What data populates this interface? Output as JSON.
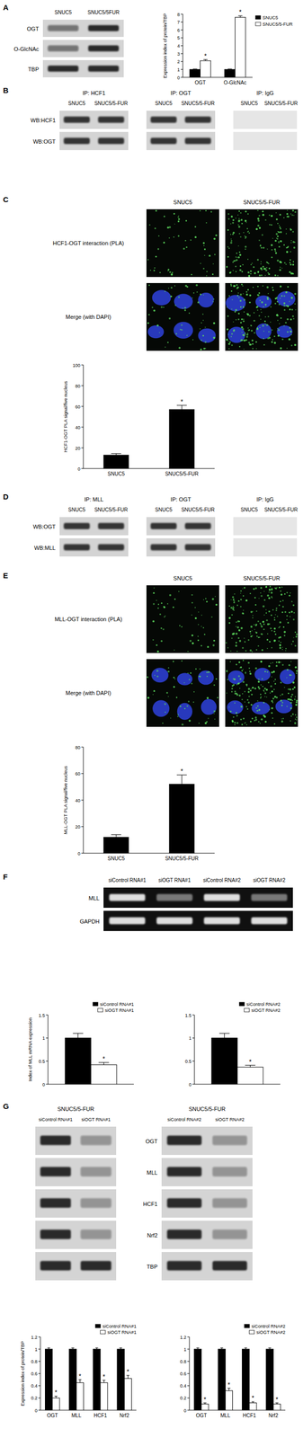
{
  "panels": [
    {
      "letter": "A",
      "blots": [
        {
          "columns": [
            "SNUC5",
            "SNUC5/5FUR"
          ],
          "rows": [
            "OGT",
            "O-GlcNAc",
            "TBP"
          ]
        }
      ]
    },
    {
      "letter": "B",
      "blots": [
        {
          "title": "IP: HCF1",
          "columns": [
            "SNUC5",
            "SNUC5/5-FUR"
          ],
          "rows": [
            "WB:HCF1",
            "WB:OGT"
          ]
        },
        {
          "title": "IP: OGT",
          "columns": [
            "SNUC5",
            "SNUC5/5-FUR"
          ]
        },
        {
          "title": "IP: IgG",
          "columns": [
            "SNUC5",
            "SNUC5/5-FUR"
          ]
        }
      ]
    },
    {
      "letter": "C",
      "images": {
        "columns": [
          "SNUC5",
          "SNUC5/5-FUR"
        ],
        "rows": [
          "HCF1-OGT interaction (PLA)",
          "Merge (with DAPI)"
        ]
      }
    },
    {
      "letter": "D",
      "blots": [
        {
          "title": "IP: MLL",
          "columns": [
            "SNUC5",
            "SNUC5/5-FUR"
          ],
          "rows": [
            "WB:OGT",
            "WB:MLL"
          ]
        },
        {
          "title": "IP: OGT",
          "columns": [
            "SNUC5",
            "SNUC5/5-FUR"
          ]
        },
        {
          "title": "IP: IgG",
          "columns": [
            "SNUC5",
            "SNUC5/5-FUR"
          ]
        }
      ]
    },
    {
      "letter": "E",
      "images": {
        "columns": [
          "SNUC5",
          "SNUC5/5-FUR"
        ],
        "rows": [
          "MLL-OGT interaction (PLA)",
          "Merge (with DAPI)"
        ]
      }
    },
    {
      "letter": "F",
      "blots": [
        {
          "columns": [
            "siControl RNA#1",
            "siOGT RNA#1",
            "siControl RNA#2",
            "siOGT RNA#2"
          ],
          "rows": [
            "MLL",
            "GAPDH"
          ]
        }
      ]
    },
    {
      "letter": "G",
      "blots": [
        {
          "title": "SNUC5/5-FUR",
          "columns": [
            "siControl RNA#1",
            "siOGT RNA#1"
          ]
        },
        {
          "title": "SNUC5/5-FUR",
          "columns": [
            "siControl RNA#2",
            "siOGT RNA#2"
          ],
          "rows": [
            "OGT",
            "MLL",
            "HCF1",
            "Nrf2",
            "TBP"
          ]
        }
      ]
    }
  ],
  "chart_data": [
    {
      "type": "bar",
      "y_label": "Expression index of protein/TBP",
      "categories": [
        "OGT",
        "O-GlcNAc"
      ],
      "series": [
        {
          "name": "SNUC5",
          "color": "#000000",
          "values": [
            1,
            1
          ],
          "errors": [
            0.05,
            0.05
          ]
        },
        {
          "name": "SNUC5/5-FUR",
          "color": "#ffffff",
          "values": [
            2.1,
            7.6
          ],
          "errors": [
            0.15,
            0.2
          ],
          "annotations": [
            "*",
            "*"
          ]
        }
      ],
      "ylim": [
        0,
        8
      ],
      "yticks": [
        0,
        1,
        2,
        3,
        4,
        5,
        6,
        7,
        8
      ],
      "legend": "right"
    },
    {
      "type": "bar",
      "y_label": "HCF1-OGT PLA signal/five nucleus",
      "categories": [
        "SNUC5",
        "SNUC5/5-FUR"
      ],
      "series": [
        {
          "color": "#000000",
          "values": [
            13,
            57
          ],
          "errors": [
            1.5,
            4
          ],
          "annotations": [
            null,
            "*"
          ]
        }
      ],
      "ylim": [
        0,
        100
      ],
      "yticks": [
        0,
        20,
        40,
        60,
        80,
        100
      ]
    },
    {
      "type": "bar",
      "y_label": "MLL-OGT PLA signal/five nucleus",
      "categories": [
        "SNUC5",
        "SNUC5/5-FUR"
      ],
      "series": [
        {
          "color": "#000000",
          "values": [
            12,
            52
          ],
          "errors": [
            2,
            7
          ],
          "annotations": [
            null,
            "*"
          ]
        }
      ],
      "ylim": [
        0,
        80
      ],
      "yticks": [
        0,
        20,
        40,
        60,
        80
      ]
    },
    {
      "type": "bar",
      "y_label": "Index of MLL mRNA expression",
      "categories": [
        null
      ],
      "series": [
        {
          "name": "siControl RNA#1",
          "color": "#000000",
          "values": [
            1
          ],
          "errors": [
            0.1
          ]
        },
        {
          "name": "siOGT RNA#1",
          "color": "#ffffff",
          "values": [
            0.42
          ],
          "errors": [
            0.05
          ],
          "annotations": [
            "*"
          ]
        }
      ],
      "ylim": [
        0,
        1.5
      ],
      "yticks": [
        0,
        0.5,
        1,
        1.5
      ],
      "legend": "top-right"
    },
    {
      "type": "bar",
      "categories": [
        null
      ],
      "series": [
        {
          "name": "siControl RNA#2",
          "color": "#000000",
          "values": [
            1
          ],
          "errors": [
            0.1
          ]
        },
        {
          "name": "siOGT RNA#2",
          "color": "#ffffff",
          "values": [
            0.37
          ],
          "errors": [
            0.04
          ],
          "annotations": [
            "*"
          ]
        }
      ],
      "ylim": [
        0,
        1.5
      ],
      "yticks": [
        0,
        0.5,
        1,
        1.5
      ],
      "legend": "top-right"
    },
    {
      "type": "bar",
      "y_label": "Expression index of protein/TBP",
      "categories": [
        "OGT",
        "MLL",
        "HCF1",
        "Nrf2"
      ],
      "series": [
        {
          "name": "siControl RNA#1",
          "color": "#000000",
          "values": [
            1,
            1,
            1,
            1
          ],
          "errors": [
            0.02,
            0.02,
            0.02,
            0.02
          ]
        },
        {
          "name": "siOGT RNA#1",
          "color": "#ffffff",
          "values": [
            0.2,
            0.45,
            0.45,
            0.52
          ],
          "errors": [
            0.03,
            0.05,
            0.04,
            0.05
          ],
          "annotations": [
            "*",
            "*",
            "*",
            "*"
          ]
        }
      ],
      "ylim": [
        0,
        1.2
      ],
      "yticks": [
        0,
        0.2,
        0.4,
        0.6,
        0.8,
        1,
        1.2
      ],
      "legend": "top-right"
    },
    {
      "type": "bar",
      "categories": [
        "OGT",
        "MLL",
        "HCF1",
        "Nrf2"
      ],
      "series": [
        {
          "name": "siControl RNA#2",
          "color": "#000000",
          "values": [
            1,
            1,
            1,
            1
          ],
          "errors": [
            0.02,
            0.02,
            0.02,
            0.02
          ]
        },
        {
          "name": "siOGT RNA#2",
          "color": "#ffffff",
          "values": [
            0.1,
            0.32,
            0.12,
            0.1
          ],
          "errors": [
            0.02,
            0.04,
            0.02,
            0.02
          ],
          "annotations": [
            "*",
            "*",
            "*",
            "*"
          ]
        }
      ],
      "ylim": [
        0,
        1.2
      ],
      "yticks": [
        0,
        0.2,
        0.4,
        0.6,
        0.8,
        1,
        1.2
      ],
      "legend": "top-right"
    }
  ]
}
